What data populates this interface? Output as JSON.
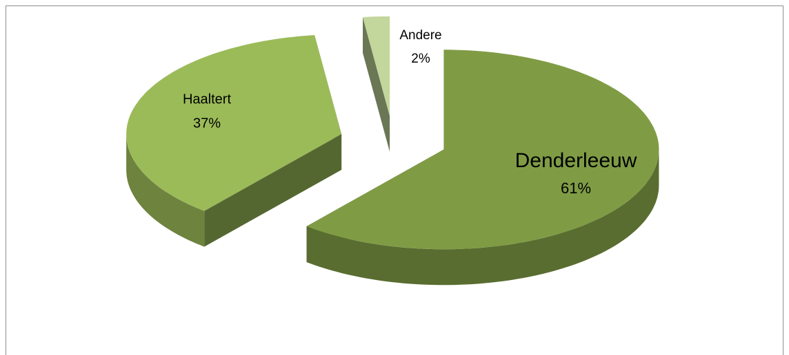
{
  "chart_data": {
    "type": "pie",
    "categories": [
      "Denderleeuw",
      "Haaltert",
      "Andere"
    ],
    "values": [
      61,
      37,
      2
    ],
    "value_labels": [
      "61%",
      "37%",
      "2%"
    ],
    "colors": [
      "#7f9c45",
      "#9bbb59",
      "#c3d69b"
    ]
  }
}
